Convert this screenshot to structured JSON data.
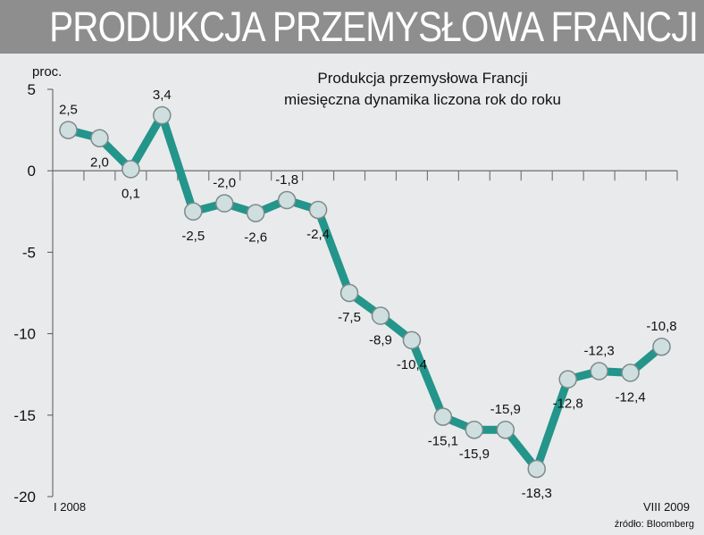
{
  "header": {
    "title": "PRODUKCJA PRZEMYSŁOWA FRANCJI"
  },
  "chart_data": {
    "type": "line",
    "title": "Produkcja przemysłowa Francji",
    "subtitle": "miesięczna dynamika liczona rok do roku",
    "ylabel": "proc.",
    "ylim": [
      -20,
      5
    ],
    "yticks": [
      "5",
      "0",
      "-5",
      "-10",
      "-15",
      "-20"
    ],
    "yticks_values": [
      5,
      0,
      -5,
      -10,
      -15,
      -20
    ],
    "x_start_label": "I 2008",
    "x_end_label": "VIII 2009",
    "values": [
      2.5,
      2.0,
      0.1,
      3.4,
      -2.5,
      -2.0,
      -2.6,
      -1.8,
      -2.4,
      -7.5,
      -8.9,
      -10.4,
      -15.1,
      -15.9,
      -15.9,
      -18.3,
      -12.8,
      -12.3,
      -12.4,
      -10.8
    ],
    "data_labels": [
      "2,5",
      "2,0",
      "0,1",
      "3,4",
      "-2,5",
      "-2,0",
      "-2,6",
      "-1,8",
      "-2,4",
      "-7,5",
      "-8,9",
      "-10,4",
      "-15,1",
      "-15,9",
      "-15,9",
      "-18,3",
      "-12,8",
      "-12,3",
      "-12,4",
      "-10,8"
    ],
    "source": "źródło: Bloomberg",
    "grid": false,
    "colors": {
      "line": "#23958a",
      "marker_fill": "#cfdfe0",
      "marker_stroke": "#7d8a8c",
      "background": "#e9eaeb",
      "banner": "#8e8e8e"
    }
  }
}
